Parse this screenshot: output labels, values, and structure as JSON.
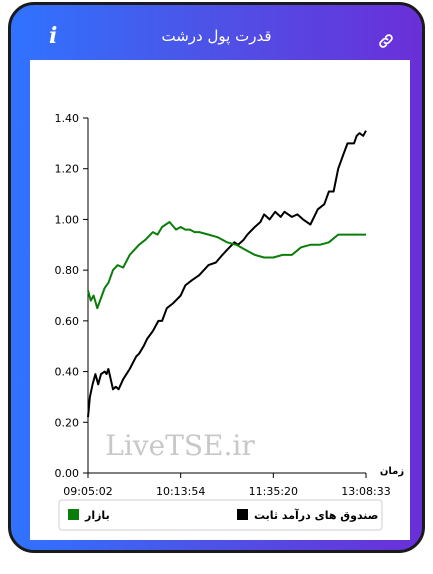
{
  "header": {
    "title": "قدرت پول درشت",
    "info_icon": "info-icon",
    "link_icon": "link-icon"
  },
  "watermark": "LiveTSE.ir",
  "chart_data": {
    "type": "line",
    "xlabel": "زمان",
    "ylim": [
      0,
      1.4
    ],
    "yticks": [
      0.0,
      0.2,
      0.4,
      0.6,
      0.8,
      1.0,
      1.2,
      1.4
    ],
    "ytick_labels": [
      "0.00",
      "0.20",
      "0.40",
      "0.60",
      "0.80",
      "1.00",
      "1.20",
      "1.40"
    ],
    "xlim": [
      0,
      3
    ],
    "xticks": [
      0,
      1,
      2,
      3
    ],
    "xtick_labels": [
      "09:05:02",
      "10:13:54",
      "11:35:20",
      "13:08:33"
    ],
    "legend_position": "bottom",
    "series": [
      {
        "name": "صندوق های درآمد ثابت",
        "color": "#000000",
        "x": [
          0,
          0.02,
          0.05,
          0.08,
          0.11,
          0.14,
          0.18,
          0.2,
          0.22,
          0.27,
          0.3,
          0.33,
          0.38,
          0.45,
          0.52,
          0.55,
          0.6,
          0.64,
          0.7,
          0.76,
          0.8,
          0.85,
          0.92,
          1.0,
          1.05,
          1.12,
          1.2,
          1.3,
          1.38,
          1.45,
          1.5,
          1.58,
          1.62,
          1.68,
          1.72,
          1.8,
          1.86,
          1.9,
          1.96,
          2.02,
          2.08,
          2.12,
          2.2,
          2.26,
          2.32,
          2.4,
          2.48,
          2.55,
          2.6,
          2.65,
          2.7,
          2.75,
          2.8,
          2.84,
          2.87,
          2.9,
          2.93,
          2.97,
          3.0
        ],
        "y": [
          0.22,
          0.3,
          0.35,
          0.39,
          0.35,
          0.39,
          0.4,
          0.39,
          0.41,
          0.33,
          0.34,
          0.33,
          0.37,
          0.41,
          0.46,
          0.47,
          0.5,
          0.53,
          0.56,
          0.6,
          0.6,
          0.65,
          0.67,
          0.7,
          0.74,
          0.76,
          0.78,
          0.82,
          0.83,
          0.86,
          0.88,
          0.91,
          0.9,
          0.92,
          0.94,
          0.97,
          0.99,
          1.02,
          1.0,
          1.03,
          1.01,
          1.03,
          1.01,
          1.02,
          1.0,
          0.98,
          1.04,
          1.06,
          1.11,
          1.11,
          1.2,
          1.25,
          1.3,
          1.3,
          1.3,
          1.33,
          1.34,
          1.33,
          1.35
        ]
      },
      {
        "name": "بازار",
        "color": "#0a7d0a",
        "x": [
          0,
          0.03,
          0.06,
          0.1,
          0.14,
          0.18,
          0.22,
          0.27,
          0.32,
          0.38,
          0.45,
          0.5,
          0.55,
          0.62,
          0.7,
          0.75,
          0.8,
          0.88,
          0.95,
          1.0,
          1.05,
          1.1,
          1.15,
          1.2,
          1.3,
          1.4,
          1.5,
          1.6,
          1.7,
          1.8,
          1.9,
          2.0,
          2.1,
          2.2,
          2.3,
          2.4,
          2.5,
          2.6,
          2.7,
          2.8,
          2.9,
          3.0
        ],
        "y": [
          0.72,
          0.68,
          0.7,
          0.65,
          0.69,
          0.73,
          0.75,
          0.8,
          0.82,
          0.81,
          0.86,
          0.88,
          0.9,
          0.92,
          0.95,
          0.94,
          0.97,
          0.99,
          0.96,
          0.97,
          0.96,
          0.96,
          0.95,
          0.95,
          0.94,
          0.93,
          0.91,
          0.9,
          0.88,
          0.86,
          0.85,
          0.85,
          0.86,
          0.86,
          0.89,
          0.9,
          0.9,
          0.91,
          0.94,
          0.94,
          0.94,
          0.94
        ]
      }
    ]
  }
}
